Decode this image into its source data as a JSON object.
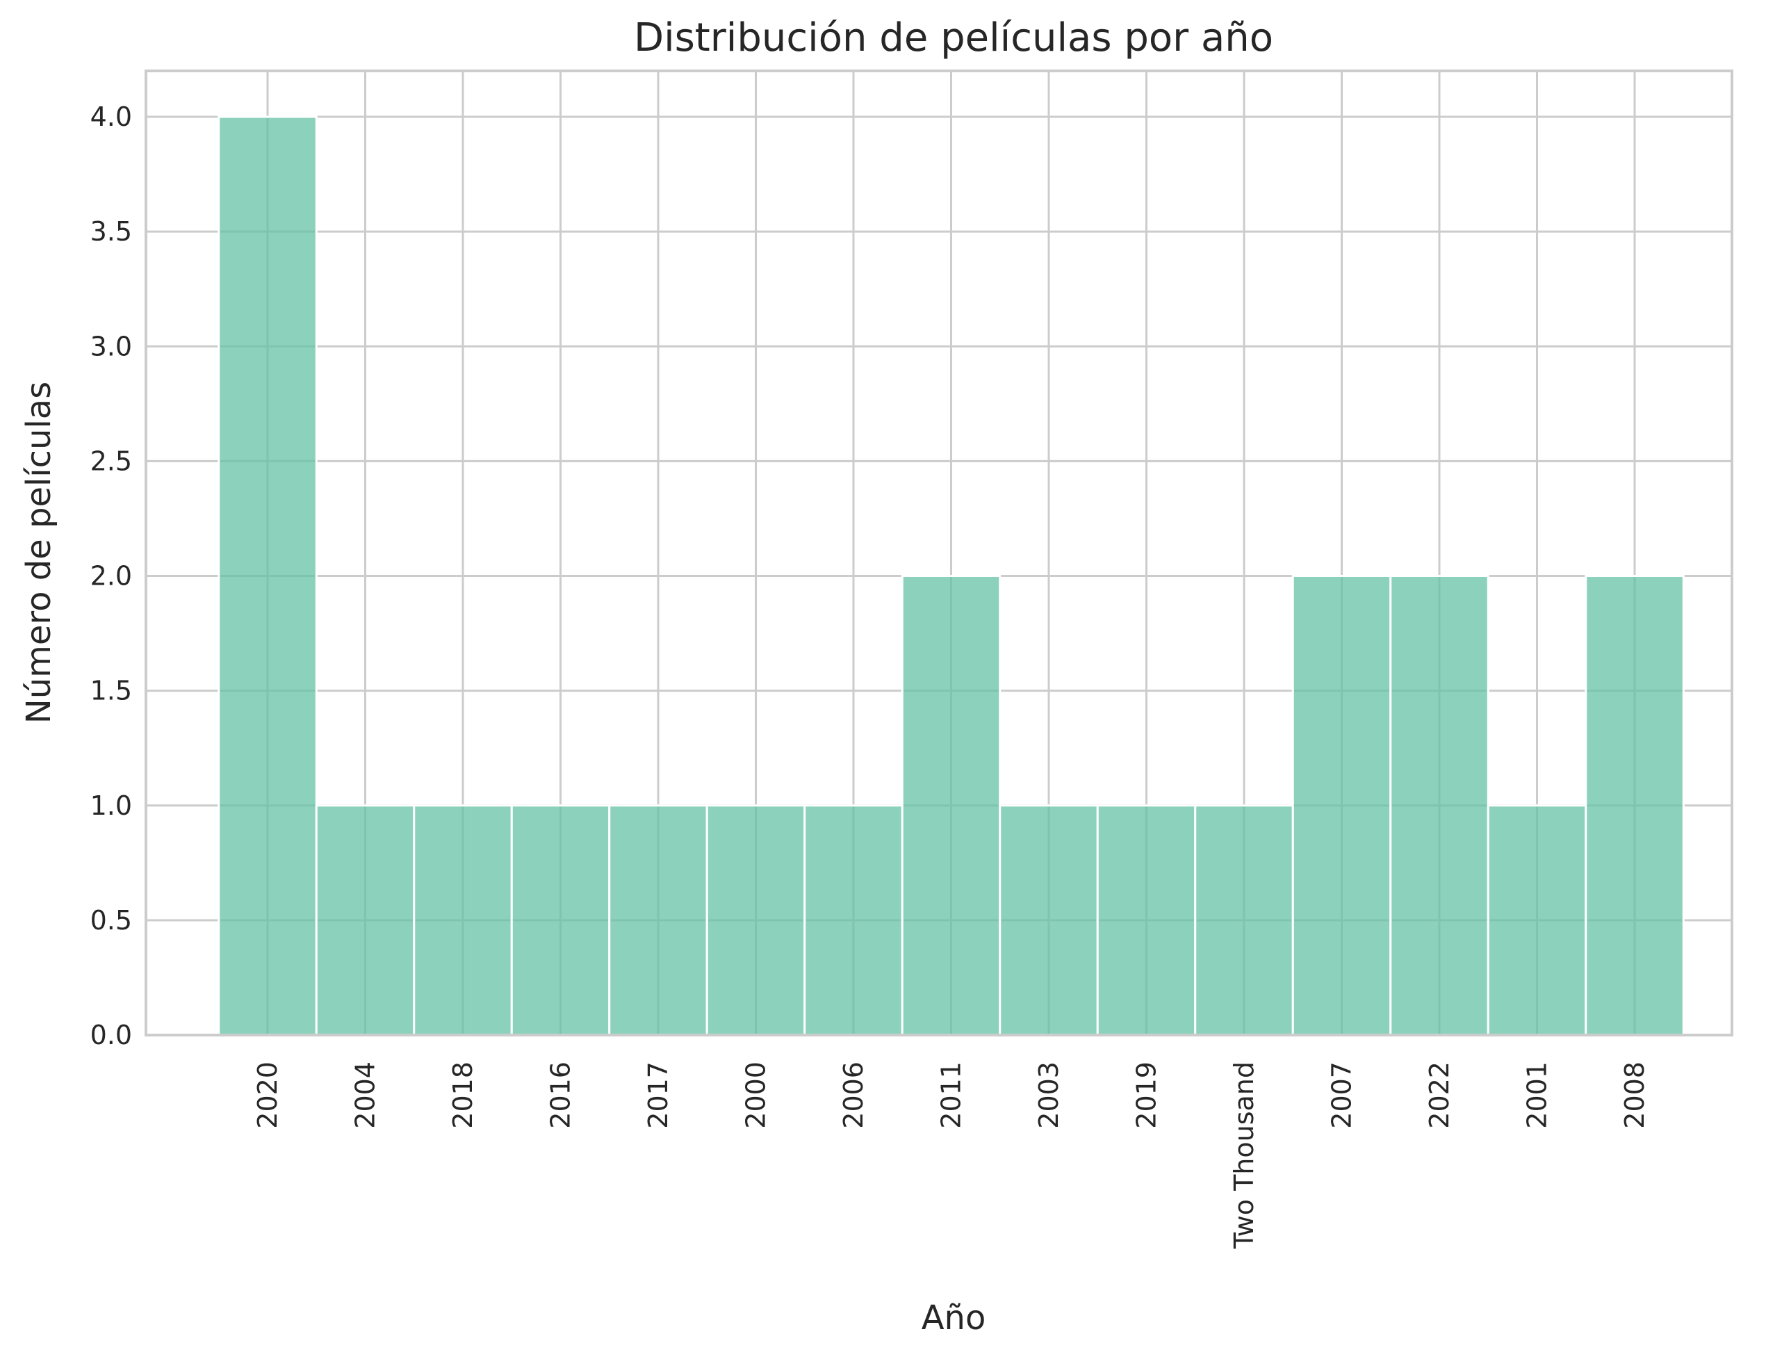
{
  "chart_data": {
    "type": "bar",
    "title": "Distribución de películas por año",
    "xlabel": "Año",
    "ylabel": "Número de películas",
    "categories": [
      "2020",
      "2004",
      "2018",
      "2016",
      "2017",
      "2000",
      "2006",
      "2011",
      "2003",
      "2019",
      "Two Thousand",
      "2007",
      "2022",
      "2001",
      "2008"
    ],
    "values": [
      4,
      1,
      1,
      1,
      1,
      1,
      1,
      2,
      1,
      1,
      1,
      2,
      2,
      1,
      2
    ],
    "ylim": [
      0,
      4.2
    ],
    "yticks": [
      "0.0",
      "0.5",
      "1.0",
      "1.5",
      "2.0",
      "2.5",
      "3.0",
      "3.5",
      "4.0"
    ],
    "grid": true,
    "bar_color": "#66c2a5",
    "grid_color": "#cccccc"
  }
}
